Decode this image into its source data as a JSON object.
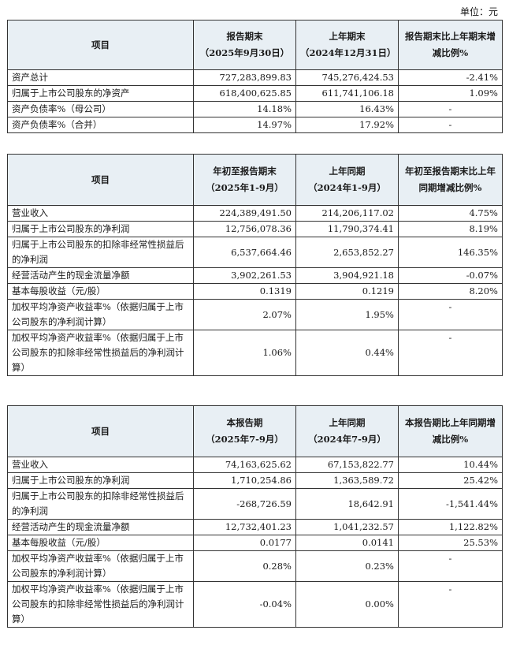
{
  "unit_label": "单位：元",
  "table1": {
    "headers": [
      "项目",
      "报告期末\n（2025年9月30日）",
      "上年期末\n（2024年12月31日）",
      "报告期末比上年期末增减比例%"
    ],
    "rows": [
      [
        "资产总计",
        "727,283,899.83",
        "745,276,424.53",
        "-2.41%"
      ],
      [
        "归属于上市公司股东的净资产",
        "618,400,625.85",
        "611,741,106.18",
        "1.09%"
      ],
      [
        "资产负债率%（母公司）",
        "14.18%",
        "16.43%",
        "-"
      ],
      [
        "资产负债率%（合并）",
        "14.97%",
        "17.92%",
        "-"
      ]
    ]
  },
  "table2": {
    "headers": [
      "项目",
      "年初至报告期末\n（2025年1-9月）",
      "上年同期\n（2024年1-9月）",
      "年初至报告期末比上年同期增减比例%"
    ],
    "rows": [
      [
        "营业收入",
        "224,389,491.50",
        "214,206,117.02",
        "4.75%"
      ],
      [
        "归属于上市公司股东的净利润",
        "12,756,078.36",
        "11,790,374.41",
        "8.19%"
      ],
      [
        "归属于上市公司股东的扣除非经常性损益后的净利润",
        "6,537,664.46",
        "2,653,852.27",
        "146.35%"
      ],
      [
        "经营活动产生的现金流量净额",
        "3,902,261.53",
        "3,904,921.18",
        "-0.07%"
      ],
      [
        "基本每股收益（元/股）",
        "0.1319",
        "0.1219",
        "8.20%"
      ],
      [
        "加权平均净资产收益率%（依据归属于上市公司股东的净利润计算）",
        "2.07%",
        "1.95%",
        "-"
      ],
      [
        "加权平均净资产收益率%（依据归属于上市公司股东的扣除非经常性损益后的净利润计算）",
        "1.06%",
        "0.44%",
        "-"
      ]
    ]
  },
  "table3": {
    "headers": [
      "项目",
      "本报告期\n（2025年7-9月）",
      "上年同期\n（2024年7-9月）",
      "本报告期比上年同期增减比例%"
    ],
    "rows": [
      [
        "营业收入",
        "74,163,625.62",
        "67,153,822.77",
        "10.44%"
      ],
      [
        "归属于上市公司股东的净利润",
        "1,710,254.86",
        "1,363,589.72",
        "25.42%"
      ],
      [
        "归属于上市公司股东的扣除非经常性损益后的净利润",
        "-268,726.59",
        "18,642.91",
        "-1,541.44%"
      ],
      [
        "经营活动产生的现金流量净额",
        "12,732,401.23",
        "1,041,232.57",
        "1,122.82%"
      ],
      [
        "基本每股收益（元/股）",
        "0.0177",
        "0.0141",
        "25.53%"
      ],
      [
        "加权平均净资产收益率%（依据归属于上市公司股东的净利润计算）",
        "0.28%",
        "0.23%",
        "-"
      ],
      [
        "加权平均净资产收益率%（依据归属于上市公司股东的扣除非经常性损益后的净利润计算）",
        "-0.04%",
        "0.00%",
        "-"
      ]
    ]
  }
}
